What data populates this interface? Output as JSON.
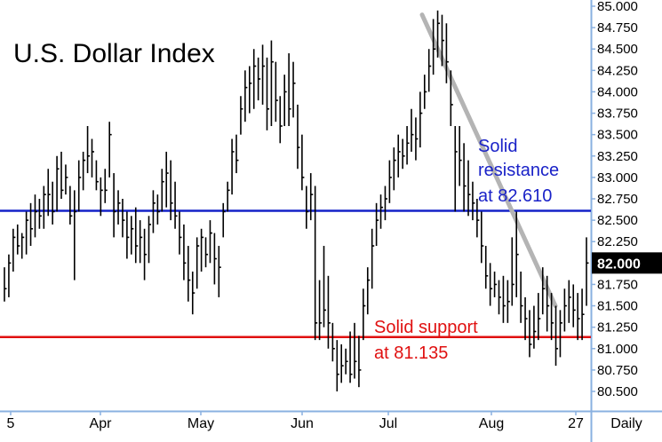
{
  "chart_data": {
    "type": "ohlc",
    "title": "U.S. Dollar Index",
    "ylim": [
      80.35,
      85.05
    ],
    "y_ticks": [
      "85.000",
      "84.750",
      "84.500",
      "84.250",
      "84.000",
      "83.750",
      "83.500",
      "83.250",
      "83.000",
      "82.750",
      "82.500",
      "82.250",
      "82.000",
      "81.750",
      "81.500",
      "81.250",
      "81.000",
      "80.750",
      "80.500"
    ],
    "x_labels": [
      "5",
      "Apr",
      "May",
      "Jun",
      "Jul",
      "Aug",
      "27",
      "Daily"
    ],
    "last_value": 82.0,
    "last_value_label": "82.000",
    "resistance": {
      "value": 82.61,
      "text": [
        "Solid",
        "resistance",
        "at 82.610"
      ]
    },
    "support": {
      "value": 81.135,
      "text": [
        "Solid support",
        "at 81.135"
      ]
    },
    "trendline": {
      "start": [
        "Jul 10",
        84.9
      ],
      "end": [
        "Aug 20",
        81.5
      ]
    },
    "bars": [
      [
        81.95,
        81.55,
        81.7
      ],
      [
        82.1,
        81.6,
        82.0
      ],
      [
        82.4,
        81.9,
        82.3
      ],
      [
        82.45,
        82.1,
        82.2
      ],
      [
        82.35,
        82.05,
        82.3
      ],
      [
        82.6,
        82.1,
        82.5
      ],
      [
        82.7,
        82.2,
        82.4
      ],
      [
        82.8,
        82.3,
        82.6
      ],
      [
        82.75,
        82.4,
        82.55
      ],
      [
        82.9,
        82.4,
        82.8
      ],
      [
        83.1,
        82.55,
        82.8
      ],
      [
        82.95,
        82.45,
        82.6
      ],
      [
        83.25,
        82.6,
        83.1
      ],
      [
        83.3,
        82.75,
        82.85
      ],
      [
        83.15,
        82.8,
        83.0
      ],
      [
        82.9,
        82.45,
        82.55
      ],
      [
        82.85,
        81.8,
        82.6
      ],
      [
        83.2,
        82.6,
        83.0
      ],
      [
        83.3,
        82.85,
        83.2
      ],
      [
        83.6,
        83.05,
        83.25
      ],
      [
        83.45,
        83.0,
        83.3
      ],
      [
        83.2,
        82.85,
        82.95
      ],
      [
        83.0,
        82.55,
        82.85
      ],
      [
        83.1,
        82.7,
        82.85
      ],
      [
        83.65,
        83.0,
        83.5
      ],
      [
        83.05,
        82.3,
        82.6
      ],
      [
        82.85,
        82.45,
        82.7
      ],
      [
        82.75,
        82.3,
        82.5
      ],
      [
        82.6,
        82.05,
        82.3
      ],
      [
        82.55,
        82.1,
        82.4
      ],
      [
        82.65,
        82.0,
        82.2
      ],
      [
        82.5,
        82.0,
        82.3
      ],
      [
        82.4,
        81.8,
        82.1
      ],
      [
        82.55,
        82.0,
        82.45
      ],
      [
        82.85,
        82.35,
        82.7
      ],
      [
        82.8,
        82.45,
        82.6
      ],
      [
        83.1,
        82.6,
        82.95
      ],
      [
        83.3,
        82.65,
        83.05
      ],
      [
        83.2,
        82.5,
        82.7
      ],
      [
        82.95,
        82.4,
        82.55
      ],
      [
        82.6,
        82.1,
        82.3
      ],
      [
        82.45,
        81.8,
        82.0
      ],
      [
        82.2,
        81.55,
        81.8
      ],
      [
        81.9,
        81.4,
        81.65
      ],
      [
        82.3,
        81.7,
        82.2
      ],
      [
        82.4,
        81.9,
        82.3
      ],
      [
        82.3,
        81.95,
        82.1
      ],
      [
        82.5,
        82.0,
        82.35
      ],
      [
        82.35,
        81.75,
        82.05
      ],
      [
        82.2,
        81.6,
        81.95
      ],
      [
        82.7,
        82.3,
        82.6
      ],
      [
        82.95,
        82.6,
        82.85
      ],
      [
        83.45,
        82.8,
        83.3
      ],
      [
        83.5,
        83.05,
        83.2
      ],
      [
        83.95,
        83.5,
        83.8
      ],
      [
        84.25,
        83.65,
        84.05
      ],
      [
        84.3,
        83.75,
        84.1
      ],
      [
        84.5,
        83.8,
        84.3
      ],
      [
        84.4,
        83.9,
        84.15
      ],
      [
        84.55,
        83.85,
        84.3
      ],
      [
        84.4,
        83.55,
        83.8
      ],
      [
        84.6,
        83.6,
        84.35
      ],
      [
        84.35,
        83.65,
        83.9
      ],
      [
        83.95,
        83.4,
        83.6
      ],
      [
        84.2,
        83.6,
        84.0
      ],
      [
        84.45,
        83.6,
        83.8
      ],
      [
        84.35,
        83.7,
        84.1
      ],
      [
        83.85,
        83.1,
        83.35
      ],
      [
        83.5,
        82.85,
        83.0
      ],
      [
        82.9,
        82.4,
        82.6
      ],
      [
        83.05,
        82.5,
        82.8
      ],
      [
        82.9,
        81.1,
        81.3
      ],
      [
        81.8,
        81.1,
        81.3
      ],
      [
        82.2,
        81.25,
        81.45
      ],
      [
        81.85,
        81.0,
        81.3
      ],
      [
        81.3,
        80.85,
        81.0
      ],
      [
        81.1,
        80.5,
        80.7
      ],
      [
        81.05,
        80.6,
        80.8
      ],
      [
        81.0,
        80.7,
        80.85
      ],
      [
        81.2,
        80.6,
        80.7
      ],
      [
        81.3,
        80.65,
        80.85
      ],
      [
        81.15,
        80.55,
        80.75
      ],
      [
        81.7,
        81.1,
        81.5
      ],
      [
        81.95,
        81.4,
        81.8
      ],
      [
        82.4,
        81.7,
        82.2
      ],
      [
        82.7,
        82.2,
        82.5
      ],
      [
        82.8,
        82.4,
        82.65
      ],
      [
        82.9,
        82.5,
        82.75
      ],
      [
        83.2,
        82.7,
        83.0
      ],
      [
        83.35,
        82.85,
        83.2
      ],
      [
        83.5,
        83.0,
        83.3
      ],
      [
        83.45,
        83.1,
        83.25
      ],
      [
        83.6,
        83.15,
        83.4
      ],
      [
        83.8,
        83.3,
        83.5
      ],
      [
        83.7,
        83.2,
        83.45
      ],
      [
        84.0,
        83.35,
        83.75
      ],
      [
        84.2,
        83.8,
        84.0
      ],
      [
        84.5,
        84.0,
        84.3
      ],
      [
        84.85,
        84.2,
        84.5
      ],
      [
        84.95,
        84.4,
        84.8
      ],
      [
        84.9,
        84.3,
        84.6
      ],
      [
        84.8,
        84.1,
        84.35
      ],
      [
        84.25,
        83.6,
        83.85
      ],
      [
        83.6,
        82.6,
        83.3
      ],
      [
        83.6,
        82.9,
        83.2
      ],
      [
        83.4,
        82.6,
        82.9
      ],
      [
        83.2,
        82.55,
        82.8
      ],
      [
        82.95,
        82.5,
        82.7
      ],
      [
        82.75,
        82.3,
        82.5
      ],
      [
        82.6,
        82.0,
        82.2
      ],
      [
        82.2,
        81.7,
        81.85
      ],
      [
        82.0,
        81.5,
        81.7
      ],
      [
        81.9,
        81.6,
        81.75
      ],
      [
        81.8,
        81.4,
        81.6
      ],
      [
        81.85,
        81.3,
        81.5
      ],
      [
        81.8,
        81.3,
        81.55
      ],
      [
        82.3,
        81.5,
        81.75
      ],
      [
        82.6,
        81.6,
        82.1
      ],
      [
        81.9,
        81.3,
        81.5
      ],
      [
        81.6,
        81.1,
        81.35
      ],
      [
        81.45,
        80.9,
        81.05
      ],
      [
        81.5,
        81.0,
        81.2
      ],
      [
        81.65,
        81.1,
        81.35
      ],
      [
        81.95,
        81.4,
        81.7
      ],
      [
        81.85,
        81.2,
        81.5
      ],
      [
        81.65,
        81.1,
        81.3
      ],
      [
        81.5,
        80.8,
        81.0
      ],
      [
        81.45,
        80.9,
        81.3
      ],
      [
        81.7,
        81.2,
        81.5
      ],
      [
        81.8,
        81.3,
        81.6
      ],
      [
        81.75,
        81.25,
        81.45
      ],
      [
        81.65,
        81.1,
        81.35
      ],
      [
        81.7,
        81.1,
        81.4
      ],
      [
        82.3,
        81.5,
        82.0
      ]
    ]
  }
}
